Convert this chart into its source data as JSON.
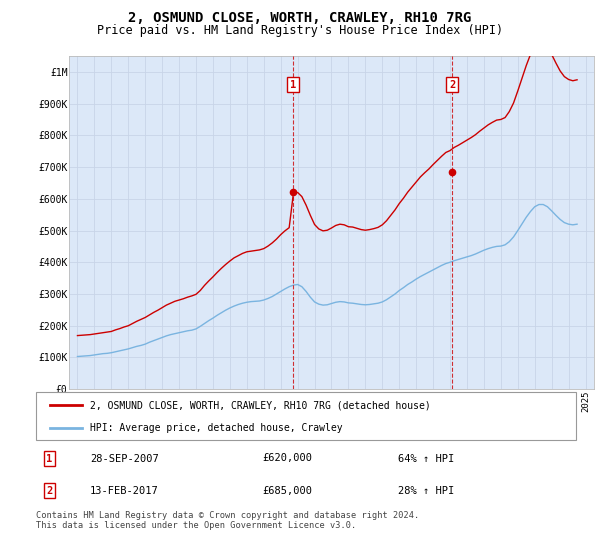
{
  "title": "2, OSMUND CLOSE, WORTH, CRAWLEY, RH10 7RG",
  "subtitle": "Price paid vs. HM Land Registry's House Price Index (HPI)",
  "title_fontsize": 10,
  "subtitle_fontsize": 8.5,
  "xlim": [
    1994.5,
    2025.5
  ],
  "ylim": [
    0,
    1050000
  ],
  "yticks": [
    0,
    100000,
    200000,
    300000,
    400000,
    500000,
    600000,
    700000,
    800000,
    900000,
    1000000
  ],
  "ytick_labels": [
    "£0",
    "£100K",
    "£200K",
    "£300K",
    "£400K",
    "£500K",
    "£600K",
    "£700K",
    "£800K",
    "£900K",
    "£1M"
  ],
  "xticks": [
    1995,
    1996,
    1997,
    1998,
    1999,
    2000,
    2001,
    2002,
    2003,
    2004,
    2005,
    2006,
    2007,
    2008,
    2009,
    2010,
    2011,
    2012,
    2013,
    2014,
    2015,
    2016,
    2017,
    2018,
    2019,
    2020,
    2021,
    2022,
    2023,
    2024,
    2025
  ],
  "hpi_color": "#7ab4e0",
  "price_color": "#cc0000",
  "marker_color": "#cc0000",
  "grid_color": "#c8d4e8",
  "background_color": "#dce8f8",
  "plot_bg_color": "#dce8f8",
  "legend_label_red": "2, OSMUND CLOSE, WORTH, CRAWLEY, RH10 7RG (detached house)",
  "legend_label_blue": "HPI: Average price, detached house, Crawley",
  "sale1_label": "1",
  "sale1_date": "28-SEP-2007",
  "sale1_price": "£620,000",
  "sale1_pct": "64% ↑ HPI",
  "sale1_x": 2007.74,
  "sale1_y": 620000,
  "sale2_label": "2",
  "sale2_date": "13-FEB-2017",
  "sale2_price": "£685,000",
  "sale2_pct": "28% ↑ HPI",
  "sale2_x": 2017.12,
  "sale2_y": 685000,
  "footer": "Contains HM Land Registry data © Crown copyright and database right 2024.\nThis data is licensed under the Open Government Licence v3.0.",
  "hpi_x": [
    1995.0,
    1995.25,
    1995.5,
    1995.75,
    1996.0,
    1996.25,
    1996.5,
    1996.75,
    1997.0,
    1997.25,
    1997.5,
    1997.75,
    1998.0,
    1998.25,
    1998.5,
    1998.75,
    1999.0,
    1999.25,
    1999.5,
    1999.75,
    2000.0,
    2000.25,
    2000.5,
    2000.75,
    2001.0,
    2001.25,
    2001.5,
    2001.75,
    2002.0,
    2002.25,
    2002.5,
    2002.75,
    2003.0,
    2003.25,
    2003.5,
    2003.75,
    2004.0,
    2004.25,
    2004.5,
    2004.75,
    2005.0,
    2005.25,
    2005.5,
    2005.75,
    2006.0,
    2006.25,
    2006.5,
    2006.75,
    2007.0,
    2007.25,
    2007.5,
    2007.75,
    2008.0,
    2008.25,
    2008.5,
    2008.75,
    2009.0,
    2009.25,
    2009.5,
    2009.75,
    2010.0,
    2010.25,
    2010.5,
    2010.75,
    2011.0,
    2011.25,
    2011.5,
    2011.75,
    2012.0,
    2012.25,
    2012.5,
    2012.75,
    2013.0,
    2013.25,
    2013.5,
    2013.75,
    2014.0,
    2014.25,
    2014.5,
    2014.75,
    2015.0,
    2015.25,
    2015.5,
    2015.75,
    2016.0,
    2016.25,
    2016.5,
    2016.75,
    2017.0,
    2017.25,
    2017.5,
    2017.75,
    2018.0,
    2018.25,
    2018.5,
    2018.75,
    2019.0,
    2019.25,
    2019.5,
    2019.75,
    2020.0,
    2020.25,
    2020.5,
    2020.75,
    2021.0,
    2021.25,
    2021.5,
    2021.75,
    2022.0,
    2022.25,
    2022.5,
    2022.75,
    2023.0,
    2023.25,
    2023.5,
    2023.75,
    2024.0,
    2024.25,
    2024.5
  ],
  "hpi_y": [
    103000,
    104000,
    105000,
    106000,
    108000,
    110000,
    112000,
    113000,
    115000,
    118000,
    121000,
    124000,
    127000,
    131000,
    135000,
    138000,
    142000,
    148000,
    153000,
    158000,
    163000,
    168000,
    172000,
    175000,
    178000,
    181000,
    184000,
    186000,
    190000,
    198000,
    207000,
    216000,
    224000,
    233000,
    241000,
    249000,
    256000,
    262000,
    267000,
    271000,
    274000,
    276000,
    277000,
    278000,
    281000,
    286000,
    292000,
    300000,
    308000,
    316000,
    323000,
    328000,
    330000,
    323000,
    308000,
    290000,
    275000,
    268000,
    265000,
    266000,
    270000,
    274000,
    276000,
    275000,
    272000,
    271000,
    269000,
    267000,
    266000,
    267000,
    269000,
    271000,
    275000,
    282000,
    291000,
    300000,
    311000,
    320000,
    330000,
    338000,
    347000,
    355000,
    362000,
    369000,
    376000,
    383000,
    390000,
    396000,
    400000,
    405000,
    409000,
    413000,
    417000,
    421000,
    426000,
    432000,
    438000,
    443000,
    447000,
    450000,
    451000,
    455000,
    465000,
    480000,
    500000,
    521000,
    542000,
    560000,
    575000,
    582000,
    582000,
    575000,
    562000,
    548000,
    535000,
    525000,
    520000,
    518000,
    520000
  ],
  "price_x": [
    1995.0,
    1995.25,
    1995.5,
    1995.75,
    1996.0,
    1996.25,
    1996.5,
    1996.75,
    1997.0,
    1997.25,
    1997.5,
    1997.75,
    1998.0,
    1998.25,
    1998.5,
    1998.75,
    1999.0,
    1999.25,
    1999.5,
    1999.75,
    2000.0,
    2000.25,
    2000.5,
    2000.75,
    2001.0,
    2001.25,
    2001.5,
    2001.75,
    2002.0,
    2002.25,
    2002.5,
    2002.75,
    2003.0,
    2003.25,
    2003.5,
    2003.75,
    2004.0,
    2004.25,
    2004.5,
    2004.75,
    2005.0,
    2005.25,
    2005.5,
    2005.75,
    2006.0,
    2006.25,
    2006.5,
    2006.75,
    2007.0,
    2007.25,
    2007.5,
    2007.75,
    2008.0,
    2008.25,
    2008.5,
    2008.75,
    2009.0,
    2009.25,
    2009.5,
    2009.75,
    2010.0,
    2010.25,
    2010.5,
    2010.75,
    2011.0,
    2011.25,
    2011.5,
    2011.75,
    2012.0,
    2012.25,
    2012.5,
    2012.75,
    2013.0,
    2013.25,
    2013.5,
    2013.75,
    2014.0,
    2014.25,
    2014.5,
    2014.75,
    2015.0,
    2015.25,
    2015.5,
    2015.75,
    2016.0,
    2016.25,
    2016.5,
    2016.75,
    2017.0,
    2017.25,
    2017.5,
    2017.75,
    2018.0,
    2018.25,
    2018.5,
    2018.75,
    2019.0,
    2019.25,
    2019.5,
    2019.75,
    2020.0,
    2020.25,
    2020.5,
    2020.75,
    2021.0,
    2021.25,
    2021.5,
    2021.75,
    2022.0,
    2022.25,
    2022.5,
    2022.75,
    2023.0,
    2023.25,
    2023.5,
    2023.75,
    2024.0,
    2024.25,
    2024.5
  ],
  "price_y": [
    169000,
    170000,
    171000,
    172000,
    174000,
    176000,
    178000,
    180000,
    182000,
    187000,
    191000,
    196000,
    200000,
    207000,
    214000,
    220000,
    226000,
    234000,
    242000,
    249000,
    257000,
    265000,
    271000,
    277000,
    281000,
    285000,
    290000,
    294000,
    299000,
    311000,
    327000,
    341000,
    354000,
    368000,
    381000,
    393000,
    404000,
    414000,
    421000,
    428000,
    433000,
    435000,
    437000,
    439000,
    443000,
    451000,
    461000,
    473000,
    487000,
    499000,
    509000,
    617000,
    620000,
    607000,
    580000,
    548000,
    519000,
    505000,
    499000,
    501000,
    508000,
    516000,
    520000,
    518000,
    512000,
    511000,
    507000,
    503000,
    501000,
    503000,
    506000,
    510000,
    518000,
    531000,
    548000,
    565000,
    585000,
    602000,
    621000,
    637000,
    653000,
    669000,
    682000,
    694000,
    708000,
    721000,
    734000,
    746000,
    752000,
    762000,
    769000,
    777000,
    785000,
    793000,
    802000,
    813000,
    823000,
    833000,
    841000,
    848000,
    850000,
    856000,
    875000,
    902000,
    940000,
    980000,
    1020000,
    1055000,
    1080000,
    1093000,
    1094000,
    1078000,
    1055000,
    1028000,
    1003000,
    985000,
    976000,
    972000,
    975000
  ]
}
